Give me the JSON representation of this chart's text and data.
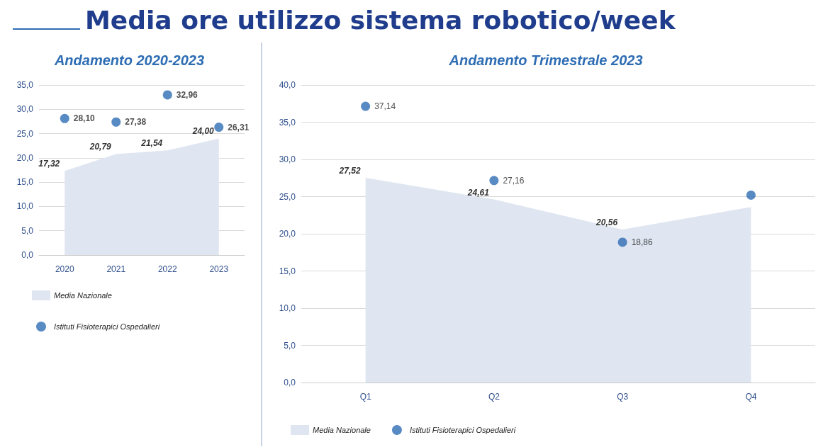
{
  "chart_data": [
    {
      "type": "area",
      "title": "Media ore utilizzo sistema robotico/week",
      "subtitle": "Andamento 2020-2023",
      "categories": [
        "2020",
        "2021",
        "2022",
        "2023"
      ],
      "series": [
        {
          "name": "Media Nazionale",
          "color": "#dfe5f1",
          "values": [
            17.32,
            20.79,
            21.54,
            24.0
          ],
          "value_labels": [
            "17,32",
            "20,79",
            "21,54",
            "24,00"
          ]
        },
        {
          "name": "Istituti Fisioterapici Ospedalieri",
          "type": "scatter",
          "marker": "circle",
          "color": "#2e6db4",
          "values": [
            28.1,
            27.38,
            32.96,
            26.31
          ],
          "value_labels": [
            "28,10",
            "27,38",
            "32,96",
            "26,31"
          ]
        }
      ],
      "ylim": [
        0,
        35
      ],
      "yticks": [
        {
          "value": 0,
          "label": "0,0"
        },
        {
          "value": 5,
          "label": "5,0"
        },
        {
          "value": 10,
          "label": "10,0"
        },
        {
          "value": 15,
          "label": "15,0"
        },
        {
          "value": 20,
          "label": "20,0"
        },
        {
          "value": 25,
          "label": "25,0"
        },
        {
          "value": 30,
          "label": "30,0"
        },
        {
          "value": 35,
          "label": "35,0"
        }
      ],
      "grid": "y",
      "legend": "bottom left"
    },
    {
      "type": "area",
      "subtitle": "Andamento Trimestrale 2023",
      "categories": [
        "Q1",
        "Q2",
        "Q3",
        "Q4"
      ],
      "series": [
        {
          "name": "Media Nazionale",
          "color": "#dfe5f1",
          "values": [
            27.52,
            24.61,
            20.56,
            23.6
          ],
          "value_labels": [
            "27,52",
            "24,61",
            "20,56",
            null
          ]
        },
        {
          "name": "Istituti Fisioterapici Ospedalieri",
          "type": "scatter",
          "marker": "circle",
          "color": "#2e6db4",
          "values": [
            37.14,
            27.16,
            18.86,
            25.2
          ],
          "value_labels": [
            "37,14",
            "27,16",
            "18,86",
            null
          ]
        }
      ],
      "ylim": [
        0,
        40
      ],
      "yticks": [
        {
          "value": 0,
          "label": "0,0"
        },
        {
          "value": 5,
          "label": "5,0"
        },
        {
          "value": 10,
          "label": "10,0"
        },
        {
          "value": 15,
          "label": "15,0"
        },
        {
          "value": 20,
          "label": "20,0"
        },
        {
          "value": 25,
          "label": "25,0"
        },
        {
          "value": 30,
          "label": "30,0"
        },
        {
          "value": 35,
          "label": "35,0"
        },
        {
          "value": 40,
          "label": "40,0"
        }
      ],
      "grid": "y",
      "legend": "bottom"
    }
  ]
}
